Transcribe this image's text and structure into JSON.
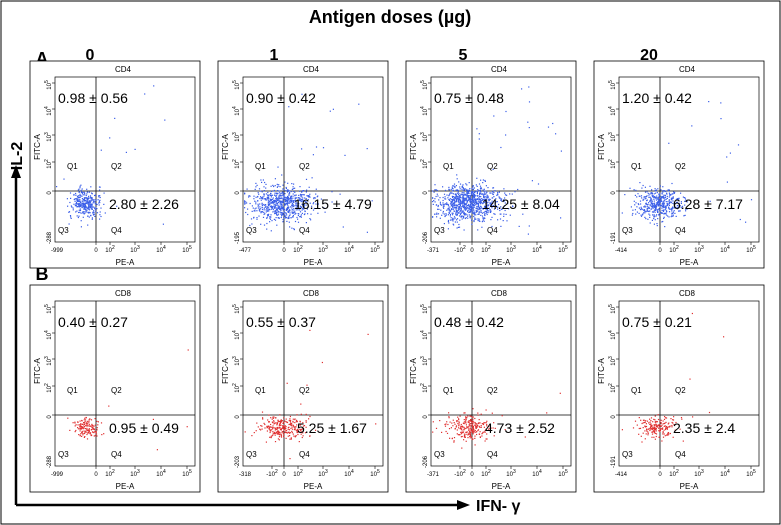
{
  "figure": {
    "header": "Antigen doses (µg)",
    "y_axis_label": "IL-2",
    "x_axis_label": "IFN- γ",
    "row_labels": [
      "A",
      "B"
    ],
    "dose_labels": [
      "0",
      "1",
      "5",
      "20"
    ]
  },
  "chart_data": [
    {
      "type": "scatter",
      "row": "A",
      "panel_title": "CD4",
      "dose": "0",
      "xlabel": "PE-A",
      "ylabel": "FITC-A",
      "x_min_label": "-999",
      "y_min_label": "-288",
      "x_ticks": [
        "0",
        "10^2",
        "10^3",
        "10^4",
        "10^5"
      ],
      "y_ticks": [
        "0",
        "10^2",
        "10^3",
        "10^4",
        "10^5"
      ],
      "quadrant_labels": [
        "Q1",
        "Q2",
        "Q3",
        "Q4"
      ],
      "q2_mean": 0.98,
      "q2_sd": 0.56,
      "q4_mean": 2.8,
      "q4_sd": 2.26,
      "q2_text": "0.98  ± 0.56",
      "q4_text": "2.80  ± 2.26",
      "color": "#3a5ee8"
    },
    {
      "type": "scatter",
      "row": "A",
      "panel_title": "CD4",
      "dose": "1",
      "xlabel": "PE-A",
      "ylabel": "FITC-A",
      "x_min_label": "-477",
      "y_min_label": "-195",
      "x_ticks": [
        "0",
        "10^2",
        "10^3",
        "10^4",
        "10^5"
      ],
      "y_ticks": [
        "0",
        "10^2",
        "10^3",
        "10^4",
        "10^5"
      ],
      "quadrant_labels": [
        "Q1",
        "Q2",
        "Q3",
        "Q4"
      ],
      "q2_mean": 0.9,
      "q2_sd": 0.42,
      "q4_mean": 16.15,
      "q4_sd": 4.79,
      "q2_text": "0.90  ±  0.42",
      "q4_text": "16.15  ± 4.79",
      "color": "#3a5ee8"
    },
    {
      "type": "scatter",
      "row": "A",
      "panel_title": "CD4",
      "dose": "5",
      "xlabel": "PE-A",
      "ylabel": "FITC-A",
      "x_min_label": "-371",
      "y_min_label": "-206",
      "x_ticks": [
        "-10^2",
        "0",
        "10^2",
        "10^3",
        "10^4",
        "10^5"
      ],
      "y_ticks": [
        "0",
        "10^2",
        "10^3",
        "10^4",
        "10^5"
      ],
      "quadrant_labels": [
        "Q1",
        "Q2",
        "Q3",
        "Q4"
      ],
      "q2_mean": 0.75,
      "q2_sd": 0.48,
      "q4_mean": 14.25,
      "q4_sd": 8.04,
      "q2_text": "0.75  ± 0.48",
      "q4_text": "14.25  ± 8.04",
      "color": "#3a5ee8"
    },
    {
      "type": "scatter",
      "row": "A",
      "panel_title": "CD4",
      "dose": "20",
      "xlabel": "PE-A",
      "ylabel": "FITC-A",
      "x_min_label": "-414",
      "y_min_label": "-191",
      "x_ticks": [
        "0",
        "10^2",
        "10^3",
        "10^4",
        "10^5"
      ],
      "y_ticks": [
        "0",
        "10^2",
        "10^3",
        "10^4",
        "10^5"
      ],
      "quadrant_labels": [
        "Q1",
        "Q2",
        "Q3",
        "Q4"
      ],
      "q2_mean": 1.2,
      "q2_sd": 0.42,
      "q4_mean": 6.28,
      "q4_sd": 7.17,
      "q2_text": "1.20  ± 0.42",
      "q4_text": "6.28  ± 7.17",
      "color": "#3a5ee8"
    },
    {
      "type": "scatter",
      "row": "B",
      "panel_title": "CD8",
      "dose": "0",
      "xlabel": "PE-A",
      "ylabel": "FITC-A",
      "x_min_label": "-999",
      "y_min_label": "-288",
      "x_ticks": [
        "0",
        "10^2",
        "10^3",
        "10^4",
        "10^5"
      ],
      "y_ticks": [
        "0",
        "10^2",
        "10^3",
        "10^4",
        "10^5"
      ],
      "quadrant_labels": [
        "Q1",
        "Q2",
        "Q3",
        "Q4"
      ],
      "q2_mean": 0.4,
      "q2_sd": 0.27,
      "q4_mean": 0.95,
      "q4_sd": 0.49,
      "q2_text": "0.40  ± 0.27",
      "q4_text": "0.95  ± 0.49",
      "color": "#e03030"
    },
    {
      "type": "scatter",
      "row": "B",
      "panel_title": "CD8",
      "dose": "1",
      "xlabel": "PE-A",
      "ylabel": "FITC-A",
      "x_min_label": "-318",
      "y_min_label": "-203",
      "x_ticks": [
        "-10^2",
        "0",
        "10^2",
        "10^3",
        "10^4",
        "10^5"
      ],
      "y_ticks": [
        "0",
        "10^2",
        "10^3",
        "10^4",
        "10^5"
      ],
      "quadrant_labels": [
        "Q1",
        "Q2",
        "Q3",
        "Q4"
      ],
      "q2_mean": 0.55,
      "q2_sd": 0.37,
      "q4_mean": 5.25,
      "q4_sd": 1.67,
      "q2_text": "0.55  ± 0.37",
      "q4_text": "5.25  ± 1.67",
      "color": "#e03030"
    },
    {
      "type": "scatter",
      "row": "B",
      "panel_title": "CD8",
      "dose": "5",
      "xlabel": "PE-A",
      "ylabel": "FITC-A",
      "x_min_label": "-371",
      "y_min_label": "-206",
      "x_ticks": [
        "-10^2",
        "0",
        "10^2",
        "10^3",
        "10^4",
        "10^5"
      ],
      "y_ticks": [
        "0",
        "10^2",
        "10^3",
        "10^4",
        "10^5"
      ],
      "quadrant_labels": [
        "Q1",
        "Q2",
        "Q3",
        "Q4"
      ],
      "q2_mean": 0.48,
      "q2_sd": 0.42,
      "q4_mean": 4.73,
      "q4_sd": 2.52,
      "q2_text": "0.48  ± 0.42",
      "q4_text": "4.73  ± 2.52",
      "color": "#e03030"
    },
    {
      "type": "scatter",
      "row": "B",
      "panel_title": "CD8",
      "dose": "20",
      "xlabel": "PE-A",
      "ylabel": "FITC-A",
      "x_min_label": "-414",
      "y_min_label": "-191",
      "x_ticks": [
        "0",
        "10^2",
        "10^3",
        "10^4",
        "10^5"
      ],
      "y_ticks": [
        "0",
        "10^2",
        "10^3",
        "10^4",
        "10^5"
      ],
      "quadrant_labels": [
        "Q1",
        "Q2",
        "Q3",
        "Q4"
      ],
      "q2_mean": 0.75,
      "q2_sd": 0.21,
      "q4_mean": 2.35,
      "q4_sd": 2.4,
      "q2_text": "0.75  ± 0.21",
      "q4_text": "2.35  ± 2.4",
      "color": "#e03030"
    }
  ]
}
